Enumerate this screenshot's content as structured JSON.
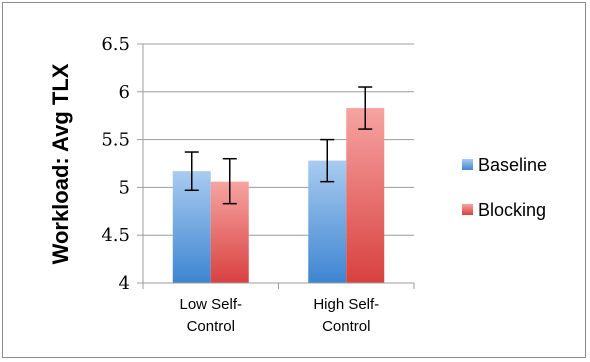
{
  "chart_data": {
    "type": "bar",
    "title": "",
    "xlabel": "",
    "ylabel": "Workload: Avg TLX",
    "ylim": [
      4,
      6.5
    ],
    "yticks": [
      "4",
      "4.5",
      "5",
      "5.5",
      "6",
      "6.5"
    ],
    "grid": true,
    "legend_position": "right",
    "categories": [
      [
        "Low Self-",
        "Control"
      ],
      [
        "High Self-",
        "Control"
      ]
    ],
    "series": [
      {
        "name": "Baseline",
        "color": "#5b9bd5",
        "values": [
          5.17,
          5.28
        ],
        "err_low": [
          4.97,
          5.06
        ],
        "err_high": [
          5.37,
          5.5
        ]
      },
      {
        "name": "Blocking",
        "color": "#e0605f",
        "values": [
          5.06,
          5.83
        ],
        "err_low": [
          4.83,
          5.61
        ],
        "err_high": [
          5.3,
          6.05
        ]
      }
    ]
  }
}
